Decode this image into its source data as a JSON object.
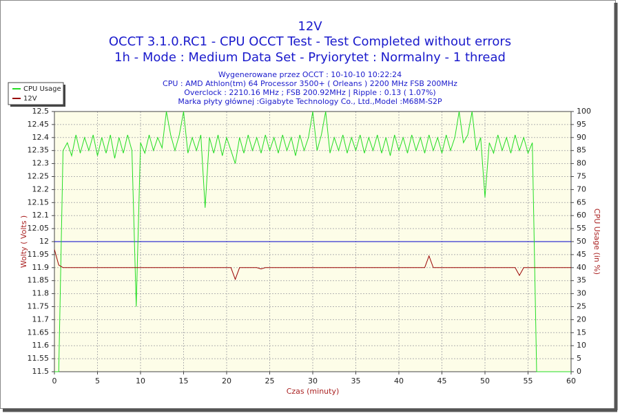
{
  "chart_data": {
    "type": "line",
    "title": "12V",
    "subtitles": [
      "OCCT 3.1.0.RC1 - CPU OCCT Test - Test Completed without errors",
      "1h - Mode : Medium Data Set - Pryiorytet : Normalny - 1 thread"
    ],
    "info": [
      "Wygenerowane przez OCCT : 10-10-10 10:22:24",
      "CPU : AMD Athlon(tm) 64 Processor 3500+ ( Orleans ) 2200 MHz FSB 200MHz",
      "Overclock : 2210.16 MHz ; FSB 200.92MHz | Ripple : 0.13 ( 1.07%)",
      "Marka płyty głównej :Gigabyte Technology Co., Ltd.,Model :M68M-S2P"
    ],
    "x_label": "Czas (minuty)",
    "y_label": "Wolty ( Volts )",
    "y2_label": "CPU Usage (in %)",
    "xlim": [
      0,
      60
    ],
    "xticks": [
      0,
      5,
      10,
      15,
      20,
      25,
      30,
      35,
      40,
      45,
      50,
      55,
      60
    ],
    "ylim": [
      11.5,
      12.5
    ],
    "yticks": [
      11.5,
      11.55,
      11.6,
      11.65,
      11.7,
      11.75,
      11.8,
      11.85,
      11.9,
      11.95,
      12,
      12.05,
      12.1,
      12.15,
      12.2,
      12.25,
      12.3,
      12.35,
      12.4,
      12.45,
      12.5
    ],
    "y2lim": [
      0,
      100
    ],
    "y2ticks": [
      0,
      5,
      10,
      15,
      20,
      25,
      30,
      35,
      40,
      45,
      50,
      55,
      60,
      65,
      70,
      75,
      80,
      85,
      90,
      95,
      100
    ],
    "grid": true,
    "legend": "top-left",
    "reference_line": {
      "value": 12,
      "color": "#0000cc"
    },
    "x": [
      0,
      0.5,
      1,
      1.5,
      2,
      2.5,
      3,
      3.5,
      4,
      4.5,
      5,
      5.5,
      6,
      6.5,
      7,
      7.5,
      8,
      8.5,
      9,
      9.5,
      10,
      10.5,
      11,
      11.5,
      12,
      12.5,
      13,
      13.5,
      14,
      14.5,
      15,
      15.5,
      16,
      16.5,
      17,
      17.5,
      18,
      18.5,
      19,
      19.5,
      20,
      20.5,
      21,
      21.5,
      22,
      22.5,
      23,
      23.5,
      24,
      24.5,
      25,
      25.5,
      26,
      26.5,
      27,
      27.5,
      28,
      28.5,
      29,
      29.5,
      30,
      30.5,
      31,
      31.5,
      32,
      32.5,
      33,
      33.5,
      34,
      34.5,
      35,
      35.5,
      36,
      36.5,
      37,
      37.5,
      38,
      38.5,
      39,
      39.5,
      40,
      40.5,
      41,
      41.5,
      42,
      42.5,
      43,
      43.5,
      44,
      44.5,
      45,
      45.5,
      46,
      46.5,
      47,
      47.5,
      48,
      48.5,
      49,
      49.5,
      50,
      50.5,
      51,
      51.5,
      52,
      52.5,
      53,
      53.5,
      54,
      54.5,
      55,
      55.5,
      56,
      56.5,
      57,
      57.5,
      58,
      58.5,
      59,
      59.5,
      60
    ],
    "series": [
      {
        "name": "CPU Usage",
        "color": "#22dd22",
        "axis": "y2",
        "values": [
          0,
          0,
          85,
          88,
          83,
          91,
          84,
          90,
          85,
          91,
          83,
          90,
          84,
          91,
          82,
          90,
          84,
          91,
          85,
          25,
          88,
          84,
          91,
          85,
          90,
          86,
          100,
          91,
          85,
          91,
          100,
          84,
          90,
          85,
          91,
          63,
          90,
          84,
          91,
          83,
          90,
          85,
          80,
          90,
          84,
          91,
          85,
          90,
          84,
          91,
          85,
          90,
          84,
          91,
          85,
          90,
          83,
          91,
          85,
          90,
          100,
          85,
          91,
          100,
          84,
          90,
          85,
          91,
          84,
          90,
          85,
          91,
          84,
          90,
          85,
          91,
          84,
          90,
          83,
          91,
          85,
          90,
          84,
          91,
          85,
          90,
          84,
          91,
          85,
          90,
          84,
          91,
          85,
          90,
          100,
          88,
          91,
          100,
          85,
          90,
          67,
          88,
          84,
          91,
          85,
          90,
          84,
          91,
          85,
          90,
          84,
          88,
          0,
          0,
          0,
          0,
          0,
          0,
          0,
          0,
          0
        ]
      },
      {
        "name": "12V",
        "color": "#990000",
        "values": [
          11.97,
          11.91,
          11.9,
          11.9,
          11.9,
          11.9,
          11.9,
          11.9,
          11.9,
          11.9,
          11.9,
          11.9,
          11.9,
          11.9,
          11.9,
          11.9,
          11.9,
          11.9,
          11.9,
          11.9,
          11.9,
          11.9,
          11.9,
          11.9,
          11.9,
          11.9,
          11.9,
          11.9,
          11.9,
          11.9,
          11.9,
          11.9,
          11.9,
          11.9,
          11.9,
          11.9,
          11.9,
          11.9,
          11.9,
          11.9,
          11.9,
          11.9,
          11.855,
          11.9,
          11.9,
          11.9,
          11.9,
          11.9,
          11.895,
          11.9,
          11.9,
          11.9,
          11.9,
          11.9,
          11.9,
          11.9,
          11.9,
          11.9,
          11.9,
          11.9,
          11.9,
          11.9,
          11.9,
          11.9,
          11.9,
          11.9,
          11.9,
          11.9,
          11.9,
          11.9,
          11.9,
          11.9,
          11.9,
          11.9,
          11.9,
          11.9,
          11.9,
          11.9,
          11.9,
          11.9,
          11.9,
          11.9,
          11.9,
          11.9,
          11.9,
          11.9,
          11.9,
          11.945,
          11.9,
          11.9,
          11.9,
          11.9,
          11.9,
          11.9,
          11.9,
          11.9,
          11.9,
          11.9,
          11.9,
          11.9,
          11.9,
          11.9,
          11.9,
          11.9,
          11.9,
          11.9,
          11.9,
          11.9,
          11.87,
          11.9,
          11.9,
          11.9,
          11.9,
          11.9,
          11.9,
          11.9,
          11.9,
          11.9,
          11.9,
          11.9,
          11.9
        ]
      }
    ]
  }
}
